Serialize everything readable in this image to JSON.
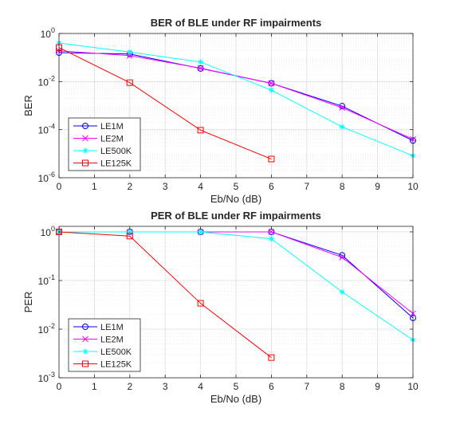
{
  "chart_data": [
    {
      "type": "line",
      "title": "BER of BLE under RF impairments",
      "xlabel": "Eb/No (dB)",
      "ylabel": "BER",
      "yscale": "log",
      "xlim": [
        0,
        10
      ],
      "ylim": [
        1e-06,
        1
      ],
      "x_ticks": [
        "0",
        "1",
        "2",
        "3",
        "4",
        "5",
        "6",
        "7",
        "8",
        "9",
        "10"
      ],
      "y_ticks": [
        {
          "base": "10",
          "exp": "-6",
          "value": 1e-06
        },
        {
          "base": "10",
          "exp": "-4",
          "value": 0.0001
        },
        {
          "base": "10",
          "exp": "-2",
          "value": 0.01
        },
        {
          "base": "10",
          "exp": "0",
          "value": 1
        }
      ],
      "grid": true,
      "minor_grid": true,
      "legend_position": "bottom-left",
      "series": [
        {
          "name": "LE1M",
          "color": "#0000ff",
          "marker": "circle",
          "x": [
            0,
            2,
            4,
            6,
            8,
            10
          ],
          "y": [
            0.16,
            0.14,
            0.035,
            0.0085,
            0.00095,
            3.5e-05
          ]
        },
        {
          "name": "LE2M",
          "color": "#ff00ff",
          "marker": "x",
          "x": [
            0,
            2,
            4,
            6,
            8,
            10
          ],
          "y": [
            0.19,
            0.12,
            0.036,
            0.0085,
            0.00082,
            4e-05
          ]
        },
        {
          "name": "LE500K",
          "color": "#00ffff",
          "marker": "asterisk",
          "x": [
            0,
            2,
            4,
            6,
            8,
            10
          ],
          "y": [
            0.4,
            0.17,
            0.065,
            0.0044,
            0.00013,
            8.2e-06
          ]
        },
        {
          "name": "LE125K",
          "color": "#ff0000",
          "marker": "square",
          "x": [
            0,
            2,
            4,
            6
          ],
          "y": [
            0.26,
            0.009,
            9.5e-05,
            6e-06
          ]
        }
      ]
    },
    {
      "type": "line",
      "title": "PER of BLE under RF impairments",
      "xlabel": "Eb/No (dB)",
      "ylabel": "PER",
      "yscale": "log",
      "xlim": [
        0,
        10
      ],
      "ylim": [
        0.001,
        1.3
      ],
      "x_ticks": [
        "0",
        "1",
        "2",
        "3",
        "4",
        "5",
        "6",
        "7",
        "8",
        "9",
        "10"
      ],
      "y_ticks": [
        {
          "base": "10",
          "exp": "-3",
          "value": 0.001
        },
        {
          "base": "10",
          "exp": "-2",
          "value": 0.01
        },
        {
          "base": "10",
          "exp": "-1",
          "value": 0.1
        },
        {
          "base": "10",
          "exp": "0",
          "value": 1
        }
      ],
      "grid": true,
      "minor_grid": true,
      "legend_position": "bottom-left",
      "series": [
        {
          "name": "LE1M",
          "color": "#0000ff",
          "marker": "circle",
          "x": [
            0,
            2,
            4,
            6,
            8,
            10
          ],
          "y": [
            1.0,
            1.0,
            1.0,
            1.0,
            0.33,
            0.017
          ]
        },
        {
          "name": "LE2M",
          "color": "#ff00ff",
          "marker": "x",
          "x": [
            0,
            2,
            4,
            6,
            8,
            10
          ],
          "y": [
            1.0,
            1.0,
            1.0,
            1.0,
            0.3,
            0.021
          ]
        },
        {
          "name": "LE500K",
          "color": "#00ffff",
          "marker": "asterisk",
          "x": [
            0,
            2,
            4,
            6,
            8,
            10
          ],
          "y": [
            1.0,
            1.0,
            1.0,
            0.72,
            0.058,
            0.006
          ]
        },
        {
          "name": "LE125K",
          "color": "#ff0000",
          "marker": "square",
          "x": [
            0,
            2,
            4,
            6
          ],
          "y": [
            1.0,
            0.82,
            0.034,
            0.0026
          ]
        }
      ]
    }
  ]
}
